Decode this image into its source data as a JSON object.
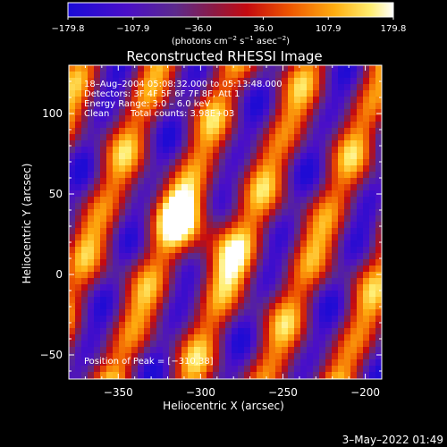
{
  "chart_data": {
    "type": "heatmap",
    "title": "Reconstructed RHESSI Image",
    "xlabel": "Heliocentric X (arcsec)",
    "ylabel": "Heliocentric Y (arcsec)",
    "xlim": [
      -380,
      -190
    ],
    "ylim": [
      -65,
      130
    ],
    "x_ticks": [
      -350,
      -300,
      -250,
      -200
    ],
    "y_ticks": [
      -50,
      0,
      50,
      100
    ],
    "x_tick_labels": [
      "−350",
      "−300",
      "−250",
      "−200"
    ],
    "y_tick_labels": [
      "−50",
      "0",
      "50",
      "100"
    ],
    "colorbar": {
      "range": [
        -179.8,
        179.8
      ],
      "ticks": [
        -179.8,
        -107.9,
        -36.0,
        36.0,
        107.9,
        179.8
      ],
      "tick_labels": [
        "−179.8",
        "−107.9",
        "−36.0",
        "36.0",
        "107.9",
        "179.8"
      ],
      "units_text": "(photons cm",
      "units_exp1": "−2",
      "units_mid": " s",
      "units_exp2": "−1",
      "units_mid2": " asec",
      "units_exp3": "−2",
      "units_end": ")"
    },
    "annotations": [
      "18–Aug–2004 05:08:32.000 to 05:13:48.000",
      "Detectors: 3F 4F 5F 6F 7F 8F, Att 1",
      "Energy Range: 3.0 – 6.0 keV",
      "Clean",
      "Total counts: 3.98E+03"
    ],
    "peak_label": "Position of Peak = [−310,38]",
    "peak": [
      -310,
      38
    ],
    "colormap": "rhessi-heat (blue-purple-red-orange-yellow-white)"
  },
  "footer": {
    "timestamp": "3–May–2022 01:49"
  }
}
